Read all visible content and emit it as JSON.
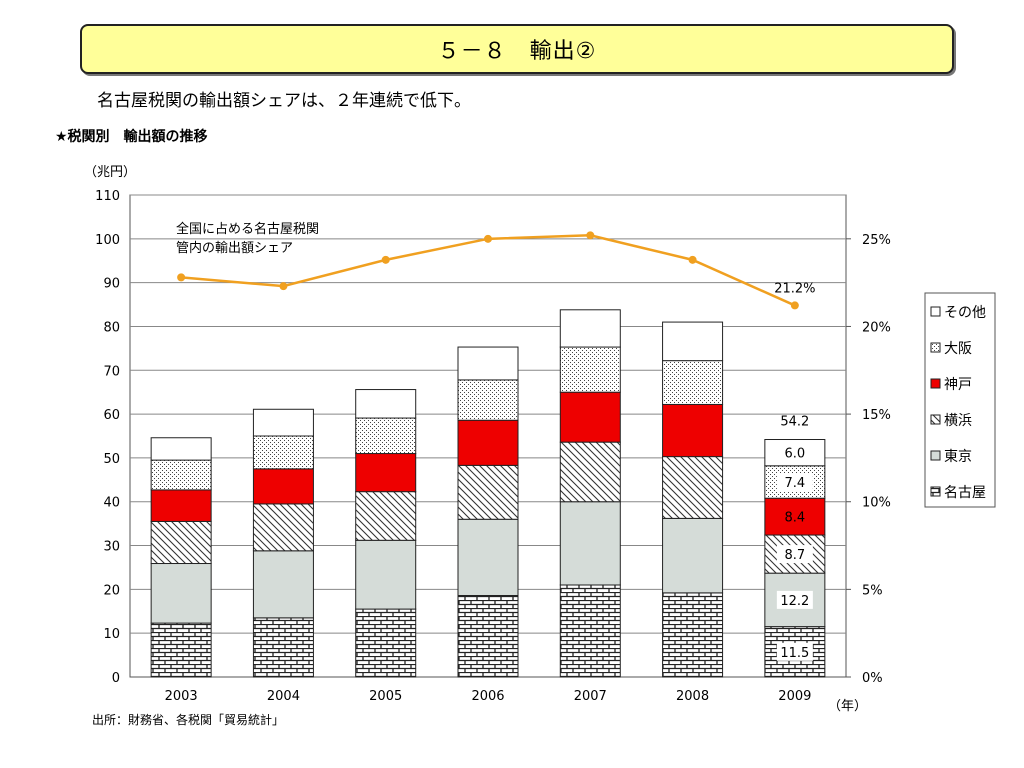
{
  "header": {
    "title": "５－８　輸出②"
  },
  "summary": "名古屋税関の輸出額シェアは、２年連続で低下。",
  "section_title": "★税関別　輸出額の推移",
  "source": "出所：財務省、各税関「貿易統計」",
  "chart_data": {
    "type": "bar",
    "stacked": true,
    "categories": [
      "2003",
      "2004",
      "2005",
      "2006",
      "2007",
      "2008",
      "2009"
    ],
    "y_unit": "（兆円）",
    "x_unit": "（年）",
    "ylim": [
      0,
      110
    ],
    "yticks": [
      0,
      10,
      20,
      30,
      40,
      50,
      60,
      70,
      80,
      90,
      100,
      110
    ],
    "y2lim": [
      0,
      27.5
    ],
    "y2ticks": [
      "0%",
      "5%",
      "10%",
      "15%",
      "20%",
      "25%"
    ],
    "grid": true,
    "legend_position": "right",
    "series": [
      {
        "name": "名古屋",
        "pattern": "brick",
        "color": "#ffffff",
        "values": [
          12.3,
          13.5,
          15.5,
          18.6,
          21.0,
          19.2,
          11.5
        ]
      },
      {
        "name": "東京",
        "pattern": "solid",
        "color": "#d5dcd8",
        "values": [
          13.6,
          15.3,
          15.7,
          17.4,
          19.0,
          17.0,
          12.2
        ]
      },
      {
        "name": "横浜",
        "pattern": "diagonal",
        "color": "#ffffff",
        "values": [
          9.6,
          10.7,
          11.1,
          12.3,
          13.6,
          14.1,
          8.7
        ]
      },
      {
        "name": "神戸",
        "pattern": "solid",
        "color": "#ee0000",
        "values": [
          7.2,
          8.0,
          8.7,
          10.3,
          11.4,
          11.9,
          8.4
        ]
      },
      {
        "name": "大阪",
        "pattern": "dots",
        "color": "#ffffff",
        "values": [
          6.8,
          7.5,
          8.1,
          9.2,
          10.3,
          10.0,
          7.4
        ]
      },
      {
        "name": "その他",
        "pattern": "solid",
        "color": "#ffffff",
        "values": [
          5.1,
          6.1,
          6.5,
          7.5,
          8.5,
          8.8,
          6.0
        ]
      }
    ],
    "totals": [
      54.6,
      61.1,
      65.6,
      75.3,
      83.8,
      81.0,
      54.2
    ],
    "share_line": {
      "name": "全国に占める名古屋税関管内の輸出額シェア",
      "label_lines": [
        "全国に占める名古屋税関",
        "管内の輸出額シェア"
      ],
      "color": "#f0a020",
      "values": [
        22.8,
        22.3,
        23.8,
        25.0,
        25.2,
        23.8,
        21.2
      ]
    },
    "data_labels_2009": [
      "11.5",
      "12.2",
      "8.7",
      "8.4",
      "7.4",
      "6.0"
    ],
    "total_label_2009": "54.2",
    "share_label_2009": "21.2%"
  }
}
